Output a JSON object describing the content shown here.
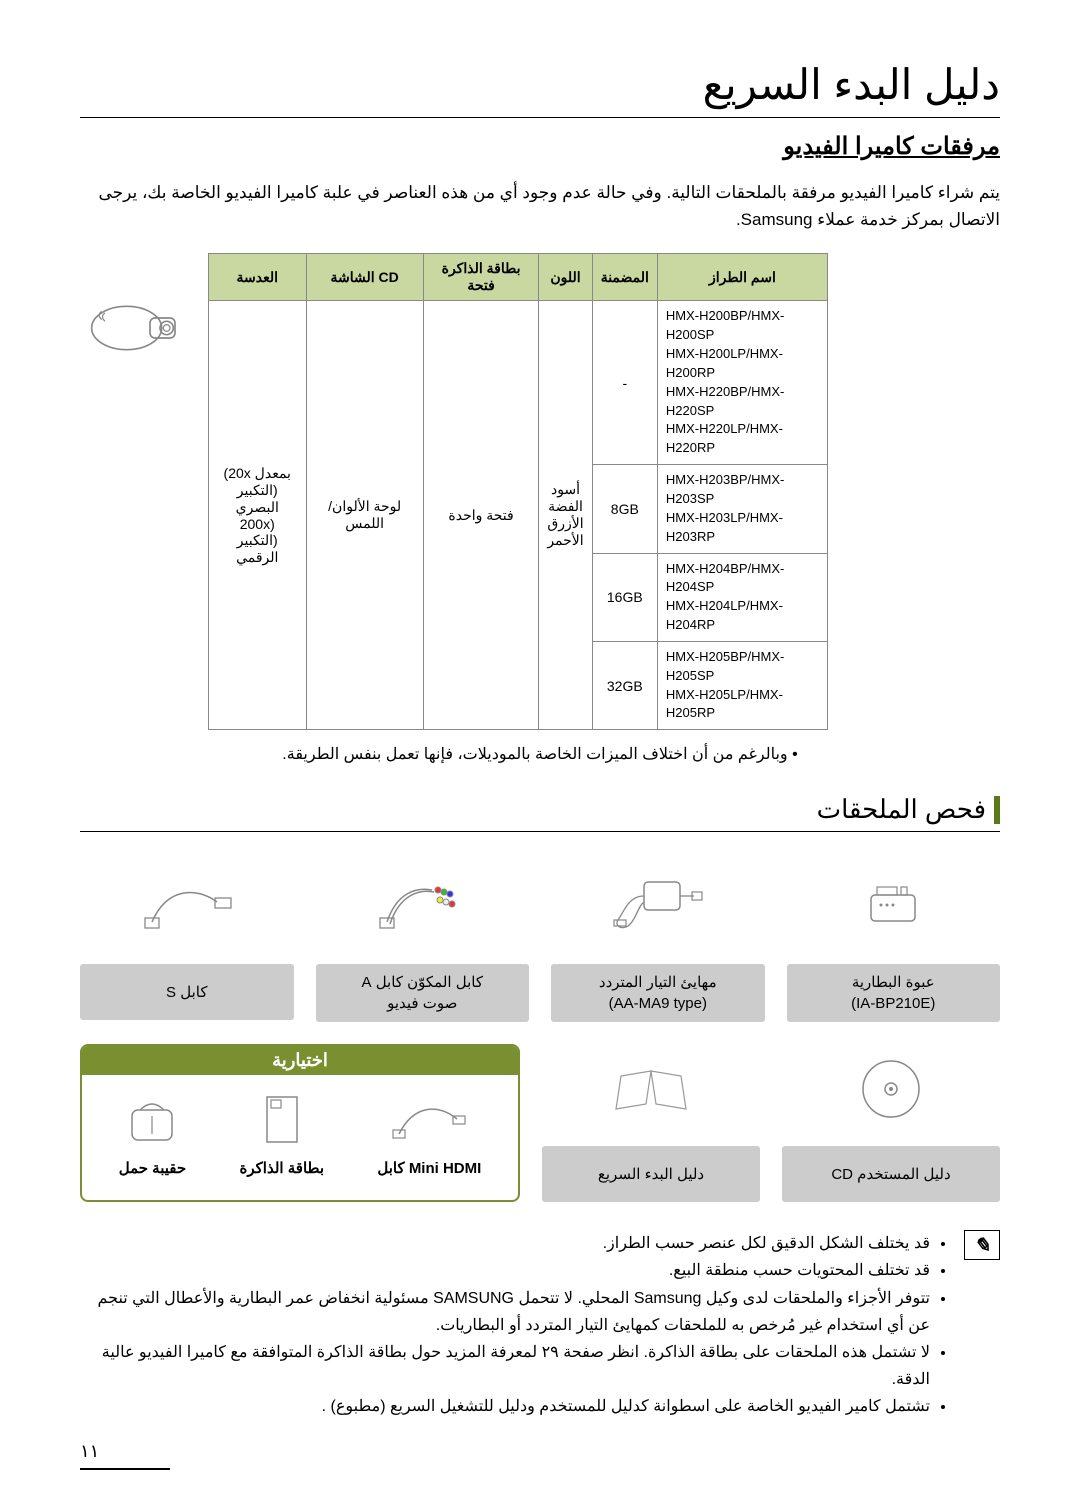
{
  "title": "دليل البدء السريع",
  "subtitle": "مرفقات كاميرا الفيديو",
  "intro": "يتم شراء كاميرا الفيديو مرفقة بالملحقات التالية. وفي حالة عدم وجود أي من هذه العناصر في علبة كاميرا الفيديو الخاصة بك، يرجى الاتصال بمركز خدمة عملاء Samsung.",
  "table": {
    "headers": [
      "اسم الطراز",
      "المضمنة",
      "اللون",
      "بطاقة الذاكرة فتحة",
      "CD الشاشة",
      "العدسة"
    ],
    "color_cell": "أسود\nالفضة\nالأزرق\nالأحمر",
    "slot_cell": "فتحة واحدة",
    "lcd_cell": "لوحة الألوان/اللمس",
    "lens_cell": "بمعدل 20x)\n(التكبير البصري\n(200x\n(التكبير الرقمي",
    "rows": [
      {
        "model": "HMX-H200BP/HMX-H200SP\nHMX-H200LP/HMX-H200RP\nHMX-H220BP/HMX-H220SP\nHMX-H220LP/HMX-H220RP",
        "mem": "-"
      },
      {
        "model": "HMX-H203BP/HMX-H203SP\nHMX-H203LP/HMX-H203RP",
        "mem": "8GB"
      },
      {
        "model": "HMX-H204BP/HMX-H204SP\nHMX-H204LP/HMX-H204RP",
        "mem": "16GB"
      },
      {
        "model": "HMX-H205BP/HMX-H205SP\nHMX-H205LP/HMX-H205RP",
        "mem": "32GB"
      }
    ]
  },
  "note_line": "• وبالرغم من أن اختلاف الميزات الخاصة بالموديلات، فإنها تعمل بنفس الطريقة.",
  "section2_title": "فحص الملحقات",
  "accessories_r1": [
    {
      "label": "عبوة البطارية\n(IA-BP210E)"
    },
    {
      "label": "مهايئ التيار المتردد\n(AA-MA9 type)"
    },
    {
      "label": "كابل المكوّن   كابل A\nصوت فيديو"
    },
    {
      "label": "كابل       S"
    }
  ],
  "accessories_r2": [
    {
      "label": "دليل  المستخدم CD"
    },
    {
      "label": "دليل البدء السريع"
    }
  ],
  "optional_header": "اختيارية",
  "optional_items": [
    {
      "label": "Mini HDMI كابل"
    },
    {
      "label": "بطاقة الذاكرة"
    },
    {
      "label": "حقيبة حمل"
    }
  ],
  "footnotes": [
    "قد يختلف الشكل الدقيق لكل عنصر حسب الطراز.",
    "قد تختلف المحتويات حسب منطقة البيع.",
    "تتوفر الأجزاء والملحقات لدى وكيل Samsung المحلي. لا تتحمل SAMSUNG مسئولية انخفاض عمر البطارية والأعطال التي تنجم عن أي استخدام غير مُرخص به للملحقات كمهايئ التيار المتردد أو البطاريات.",
    "لا تشتمل هذه الملحقات على بطاقة الذاكرة. انظر صفحة ٢٩ لمعرفة المزيد حول بطاقة الذاكرة المتوافقة مع كاميرا الفيديو عالية الدقة.",
    "تشتمل كامير الفيديو الخاصة على اسطوانة كدليل للمستخدم ودليل للتشغيل السريع (مطبوع) ."
  ],
  "page_number": "١١"
}
